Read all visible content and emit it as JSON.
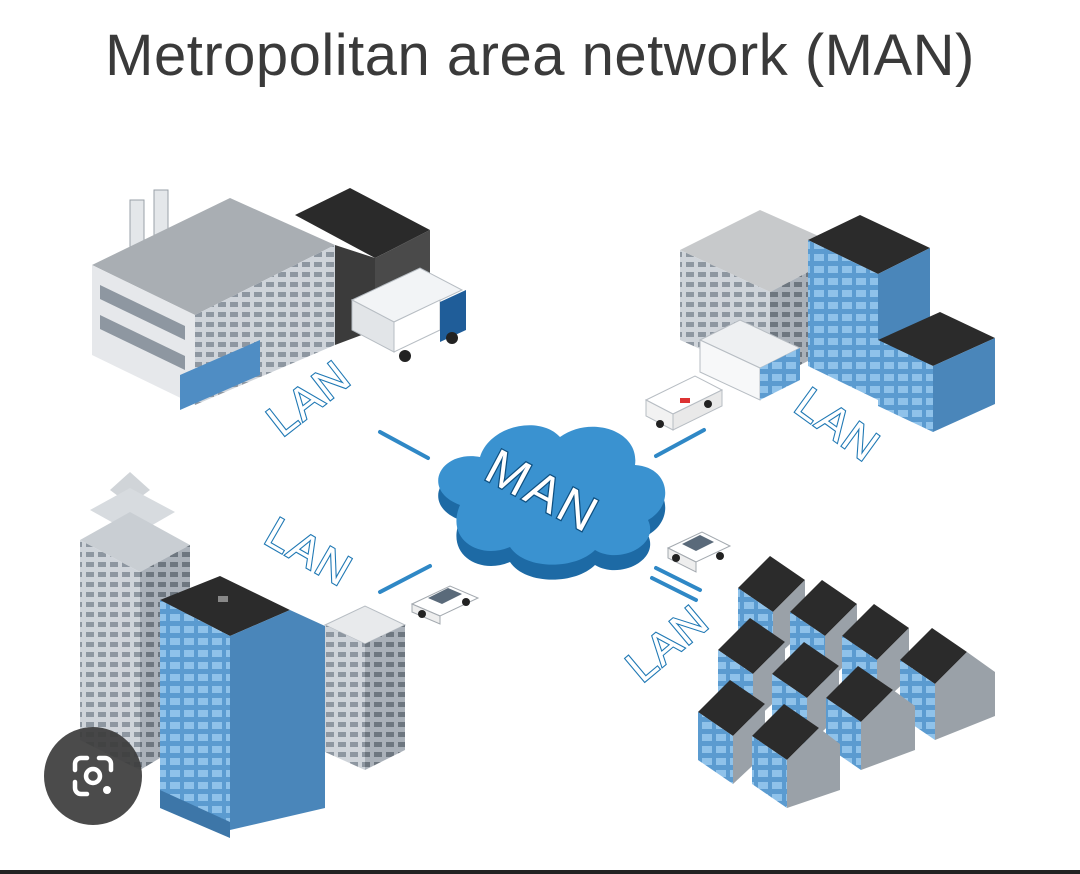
{
  "title": "Metropolitan area network (MAN)",
  "center_label": "MAN",
  "link_labels": {
    "top_left": "LAN",
    "top_right": "LAN",
    "bottom_left": "LAN",
    "bottom_right": "LAN"
  },
  "colors": {
    "cloud": "#2f88c6",
    "building_blue": "#5f9fd1",
    "roof_dark": "#2b2b2b",
    "facade_light": "#d9dde2",
    "text": "#3a3a3a"
  },
  "overlay": {
    "icon": "lens-search-icon"
  }
}
